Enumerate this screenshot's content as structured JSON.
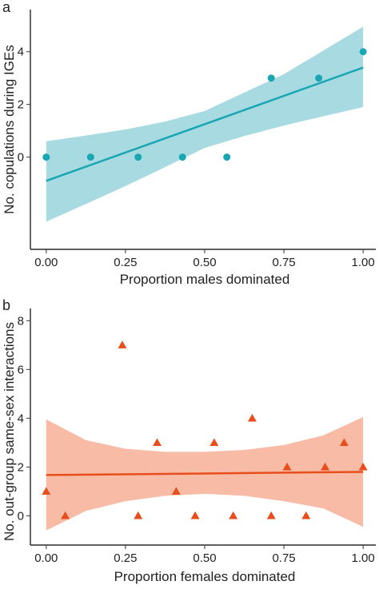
{
  "chart_data": [
    {
      "type": "scatter",
      "panel_label": "a",
      "xlabel": "Proportion males dominated",
      "ylabel": "No. copulations during IGEs",
      "xlim": [
        -0.05,
        1.04
      ],
      "ylim": [
        -3.5,
        5.6
      ],
      "x_ticks": [
        0,
        0.25,
        0.5,
        0.75,
        1
      ],
      "x_tick_labels": [
        "0.00",
        "0.25",
        "0.50",
        "0.75",
        "1.00"
      ],
      "y_ticks": [
        0,
        2,
        4
      ],
      "y_tick_labels": [
        "0",
        "2",
        "4"
      ],
      "grid": false,
      "marker": "circle",
      "colors": {
        "points": "#1aa6b3",
        "line": "#1aa6b3",
        "band": "#a8dbe1"
      },
      "series": [
        {
          "x": [
            0.0,
            0.14,
            0.29,
            0.43,
            0.57,
            0.71,
            0.86,
            1.0
          ],
          "y": [
            0,
            0,
            0,
            0,
            0,
            3,
            3,
            4
          ]
        }
      ],
      "fit": {
        "x": [
          0,
          1
        ],
        "y": [
          -0.9,
          3.4
        ]
      },
      "band": {
        "x": [
          0,
          0.125,
          0.25,
          0.375,
          0.5,
          0.625,
          0.75,
          0.875,
          1
        ],
        "upper": [
          0.6,
          0.82,
          1.05,
          1.35,
          1.75,
          2.45,
          3.15,
          4.05,
          4.95
        ],
        "lower": [
          -2.45,
          -1.78,
          -1.1,
          -0.38,
          0.35,
          0.8,
          1.2,
          1.55,
          1.9
        ]
      }
    },
    {
      "type": "scatter",
      "panel_label": "b",
      "xlabel": "Proportion females dominated",
      "ylabel": "No. out-group same-sex interactions",
      "xlim": [
        -0.05,
        1.04
      ],
      "ylim": [
        -1.2,
        8.5
      ],
      "x_ticks": [
        0,
        0.25,
        0.5,
        0.75,
        1
      ],
      "x_tick_labels": [
        "0.00",
        "0.25",
        "0.50",
        "0.75",
        "1.00"
      ],
      "y_ticks": [
        0,
        2,
        4,
        6,
        8
      ],
      "y_tick_labels": [
        "0",
        "2",
        "4",
        "6",
        "8"
      ],
      "grid": false,
      "marker": "triangle",
      "colors": {
        "points": "#e84e1b",
        "line": "#e84e1b",
        "band": "#f8bba6"
      },
      "series": [
        {
          "x": [
            0.0,
            0.06,
            0.24,
            0.29,
            0.35,
            0.41,
            0.47,
            0.53,
            0.59,
            0.65,
            0.71,
            0.76,
            0.82,
            0.88,
            0.94,
            1.0
          ],
          "y": [
            1,
            0,
            7,
            0,
            3,
            1,
            0,
            3,
            0,
            4,
            0,
            2,
            0,
            2,
            3,
            2
          ]
        }
      ],
      "fit": {
        "x": [
          0,
          1
        ],
        "y": [
          1.67,
          1.8
        ]
      },
      "band": {
        "x": [
          0,
          0.125,
          0.25,
          0.375,
          0.5,
          0.625,
          0.75,
          0.875,
          1
        ],
        "upper": [
          3.95,
          3.1,
          2.75,
          2.62,
          2.62,
          2.7,
          2.9,
          3.3,
          4.05
        ],
        "lower": [
          -0.6,
          0.2,
          0.6,
          0.82,
          0.9,
          0.82,
          0.6,
          0.3,
          -0.45
        ]
      }
    }
  ]
}
